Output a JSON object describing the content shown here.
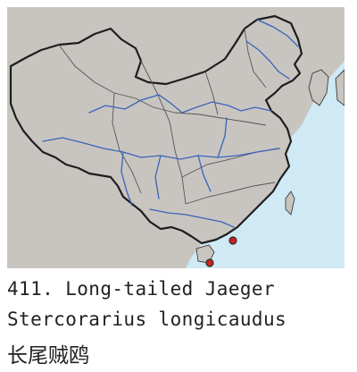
{
  "map": {
    "colors": {
      "sea": "#cfe9f5",
      "land": "#c8c5c1",
      "china": "#c8c5c1",
      "border": "#2a2a2a",
      "river": "#3a64b8",
      "record": "#cc2222"
    },
    "records": [
      {
        "place": "Hong Kong coast"
      },
      {
        "place": "Hainan"
      }
    ]
  },
  "caption": {
    "line1": "411. Long-tailed Jaeger",
    "line2": "Stercorarius longicaudus",
    "line3": "长尾贼鸥"
  }
}
